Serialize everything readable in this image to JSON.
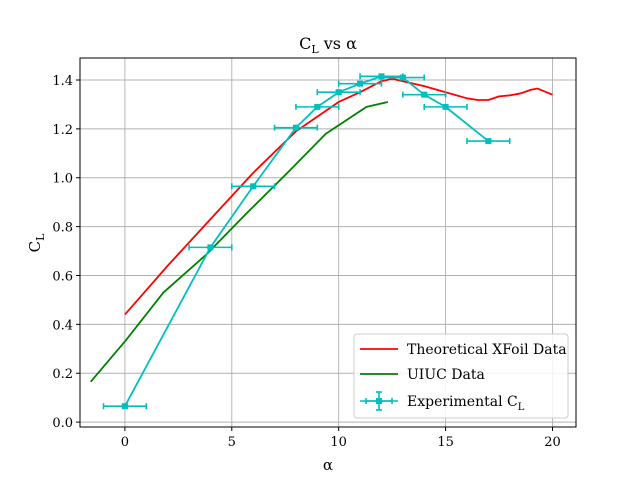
{
  "chart_data": {
    "type": "line",
    "title": "C_L vs α",
    "title_parts": {
      "main": "C",
      "sub": "L",
      "rest": " vs α"
    },
    "xlabel": "α",
    "ylabel_parts": {
      "main": "C",
      "sub": "L"
    },
    "xlim": [
      -2.1,
      21.1
    ],
    "ylim": [
      -0.02,
      1.49
    ],
    "xticks": [
      0,
      5,
      10,
      15,
      20
    ],
    "xtick_labels": [
      "0",
      "5",
      "10",
      "15",
      "20"
    ],
    "yticks": [
      0.0,
      0.2,
      0.4,
      0.6,
      0.8,
      1.0,
      1.2,
      1.4
    ],
    "ytick_labels": [
      "0.0",
      "0.2",
      "0.4",
      "0.6",
      "0.8",
      "1.0",
      "1.2",
      "1.4"
    ],
    "grid": true,
    "legend_position": "bottom-right",
    "series": [
      {
        "name": "Theoretical XFoil Data",
        "color": "#ff0000",
        "style": "line",
        "x": [
          0,
          2,
          4,
          6,
          8,
          10,
          11,
          12,
          12.5,
          13,
          14,
          15,
          16,
          16.5,
          17,
          17.5,
          18,
          18.5,
          19,
          19.3,
          20
        ],
        "y": [
          0.44,
          0.64,
          0.83,
          1.02,
          1.19,
          1.31,
          1.35,
          1.395,
          1.405,
          1.395,
          1.375,
          1.35,
          1.325,
          1.318,
          1.318,
          1.333,
          1.337,
          1.345,
          1.36,
          1.365,
          1.34
        ]
      },
      {
        "name": "UIUC Data",
        "color": "#008000",
        "style": "line",
        "x": [
          -1.6,
          0,
          1.8,
          3.8,
          5.7,
          7.6,
          9.4,
          11.3,
          12.3
        ],
        "y": [
          0.165,
          0.33,
          0.53,
          0.685,
          0.855,
          1.02,
          1.18,
          1.29,
          1.31
        ]
      },
      {
        "name": "Experimental C_L",
        "name_parts": {
          "main": "Experimental C",
          "sub": "L"
        },
        "color": "#00bfbf",
        "style": "errorbar",
        "x": [
          0,
          4,
          6,
          8,
          9,
          10,
          11,
          12,
          13,
          14,
          15,
          17
        ],
        "y": [
          0.065,
          0.715,
          0.965,
          1.205,
          1.29,
          1.35,
          1.385,
          1.415,
          1.41,
          1.34,
          1.29,
          1.15
        ],
        "xerr": [
          1,
          1,
          1,
          1,
          1,
          1,
          1,
          1,
          1,
          1,
          1,
          1
        ],
        "yerr": [
          0.005,
          0.005,
          0.005,
          0.005,
          0.005,
          0.005,
          0.005,
          0.005,
          0.005,
          0.005,
          0.005,
          0.005
        ]
      }
    ]
  }
}
